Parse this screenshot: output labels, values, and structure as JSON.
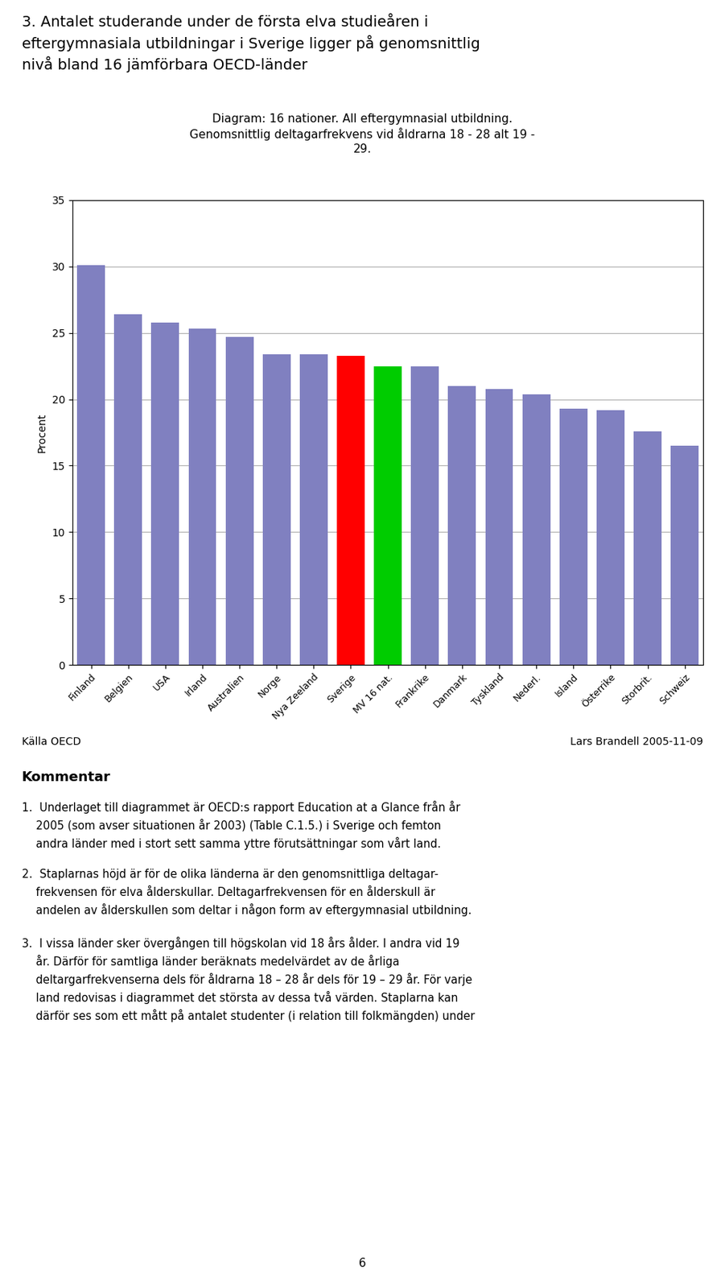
{
  "chart_data": {
    "type": "bar",
    "title": "3. Antalet studerande under de första elva studieåren i\neftergymnasiala utbildningar i Sverige ligger på genomsnittlig\nnivå bland 16 jämförbara OECD-länder",
    "subtitle": "Diagram: 16 nationer. All eftergymnasial utbildning.\nGenomsnittlig deltagarfrekvens vid åldrarna 18 - 28 alt 19 -\n29.",
    "ylabel": "Procent",
    "categories": [
      "Finland",
      "Belgien",
      "USA",
      "Irland",
      "Australien",
      "Norge",
      "Nya Zeeland",
      "Sverige",
      "MV 16 nat.",
      "Frankrike",
      "Danmark",
      "Tyskland",
      "Nederl.",
      "Island",
      "Österrike",
      "Storbrit.",
      "Schweiz"
    ],
    "values": [
      30.1,
      26.4,
      25.8,
      25.3,
      24.7,
      23.4,
      23.4,
      23.3,
      22.5,
      22.5,
      21.0,
      20.8,
      20.4,
      19.3,
      19.2,
      17.6,
      16.5
    ],
    "colors": [
      "#8080c0",
      "#8080c0",
      "#8080c0",
      "#8080c0",
      "#8080c0",
      "#8080c0",
      "#8080c0",
      "#ff0000",
      "#00cc00",
      "#8080c0",
      "#8080c0",
      "#8080c0",
      "#8080c0",
      "#8080c0",
      "#8080c0",
      "#8080c0",
      "#8080c0"
    ],
    "ylim": [
      0,
      35
    ],
    "yticks": [
      0,
      5,
      10,
      15,
      20,
      25,
      30,
      35
    ],
    "grid": true,
    "annotations": {
      "source": "Källa OECD",
      "author": "Lars Brandell 2005-11-09",
      "comment_header": "Kommentar",
      "comment_items": [
        "1.\tUnderlaget till diagrammet är OECD:s rapport Education at a Glance från år\n\t2005 (som avser situationen år 2003) (Table C.1.5.) i Sverige och femton\n\tandra länder med i stort sett samma yttre förutsättningar som vårt land.",
        "2.\tStaplarnas höjd är för de olika länderna är den genomsnittliga deltagar-\n\tfrekvensen för elva ålderskullar. Deltagarfrekvensen för en ålderskull är\n\tandelen av ålderskullen som deltar i någon form av eftergymnasial utbildning.",
        "3.\tI vissa länder sker övergången till högskolan vid 18 års ålder. I andra vid 19\n\tår. Därför för samtliga länder beräknats medelvärdet av de årliga\n\tdeltargarfrekvenserna dels för åldrarna 18 – 28 år dels för 19 – 29 år. För varje\n\tland redovisas i diagrammet det största av dessa två värden. Staplarna kan\n\tdärför ses som ett mått på antalet studenter (i relation till folkmängden) under"
      ],
      "page_number": "6"
    }
  }
}
